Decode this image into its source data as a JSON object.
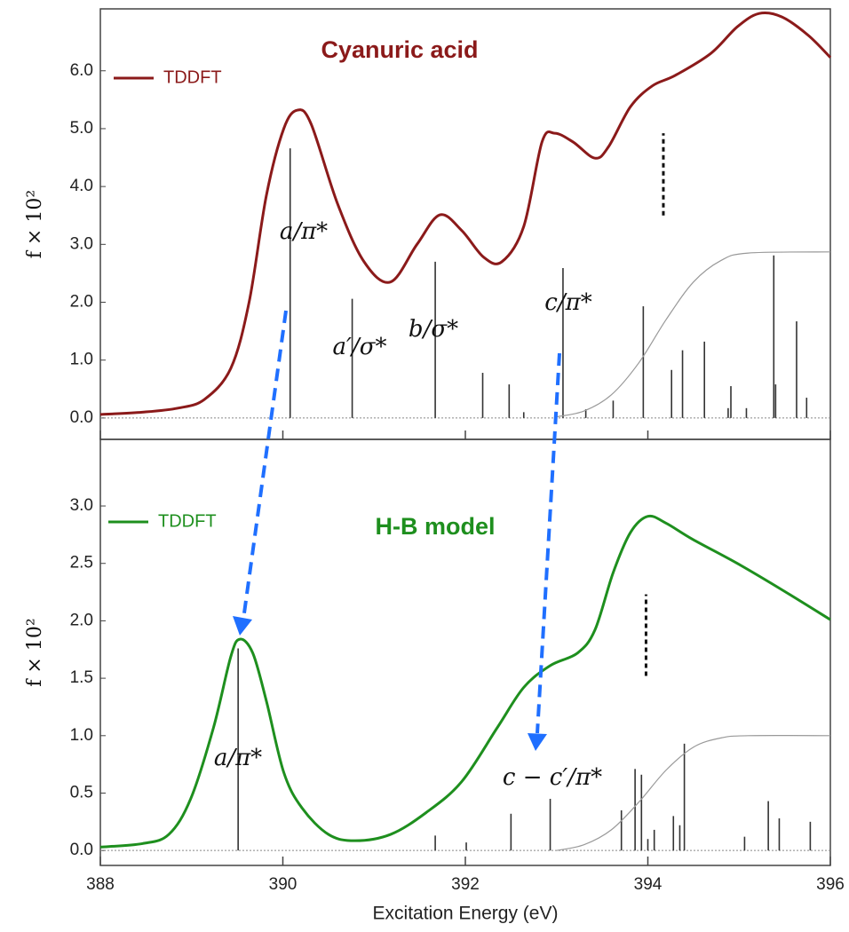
{
  "chart_data": [
    {
      "type": "line",
      "title": "Cyanuric acid",
      "title_color": "#8b1a1a",
      "ylabel": "f × 10²",
      "legend": "upper left",
      "ylim": [
        -0.37,
        7.07
      ],
      "yticks": [
        {
          "value": 0,
          "label": "0.0"
        },
        {
          "value": 1,
          "label": "1.0"
        },
        {
          "value": 2,
          "label": "2.0"
        },
        {
          "value": 3,
          "label": "3.0"
        },
        {
          "value": 4,
          "label": "4.0"
        },
        {
          "value": 5,
          "label": "5.0"
        },
        {
          "value": 6,
          "label": "6.0"
        }
      ],
      "xlim": [
        388,
        396
      ],
      "xticks": [
        388,
        390,
        392,
        394,
        396
      ],
      "series": [
        {
          "name": "TDDFT",
          "kind": "curve",
          "color": "#8b1a1a",
          "x": [
            388.0,
            388.46,
            388.85,
            389.14,
            389.43,
            389.63,
            389.82,
            390.01,
            390.16,
            390.31,
            390.6,
            390.89,
            391.18,
            391.47,
            391.72,
            391.96,
            392.2,
            392.4,
            392.64,
            392.84,
            392.98,
            393.18,
            393.42,
            393.57,
            393.81,
            394.05,
            394.3,
            394.69,
            394.98,
            395.22,
            395.47,
            395.76,
            396.0
          ],
          "values": [
            0.06,
            0.1,
            0.17,
            0.32,
            0.86,
            2.0,
            3.85,
            5.0,
            5.32,
            5.08,
            3.7,
            2.7,
            2.35,
            3.0,
            3.51,
            3.24,
            2.78,
            2.7,
            3.31,
            4.77,
            4.92,
            4.77,
            4.49,
            4.69,
            5.38,
            5.74,
            5.92,
            6.3,
            6.76,
            6.99,
            6.93,
            6.61,
            6.23
          ]
        },
        {
          "kind": "stick",
          "color": "#333333",
          "x": [
            390.08,
            390.76,
            391.67,
            392.19,
            392.48,
            392.64,
            393.07,
            393.32,
            393.62,
            393.95,
            394.26,
            394.38,
            394.62,
            394.88,
            394.91,
            395.08,
            395.38,
            395.4,
            395.63,
            395.74
          ],
          "values": [
            4.66,
            2.06,
            2.7,
            0.78,
            0.58,
            0.1,
            2.59,
            0.15,
            0.3,
            1.93,
            0.83,
            1.17,
            1.32,
            0.17,
            0.55,
            0.17,
            2.81,
            0.58,
            1.67,
            0.35
          ]
        },
        {
          "kind": "edge",
          "color": "#999999",
          "x": [
            393.0,
            393.3,
            393.6,
            393.9,
            394.2,
            394.5,
            394.8,
            395.1,
            396.0
          ],
          "values": [
            0.02,
            0.12,
            0.4,
            0.95,
            1.7,
            2.35,
            2.72,
            2.85,
            2.87
          ]
        }
      ],
      "ip_marker": {
        "x": 394.17,
        "y": [
          3.5,
          4.92
        ]
      },
      "annotations": [
        "a/π*",
        "a′/σ*",
        "b/σ*",
        "c/π*"
      ]
    },
    {
      "type": "line",
      "title": "H-B  model",
      "title_color": "#1e8f1e",
      "ylabel": "f × 10²",
      "xlabel": "Excitation Energy (eV)",
      "legend": "upper left",
      "ylim": [
        -0.13,
        3.58
      ],
      "yticks": [
        {
          "value": 0,
          "label": "0.0"
        },
        {
          "value": 0.5,
          "label": "0.5"
        },
        {
          "value": 1,
          "label": "1.0"
        },
        {
          "value": 1.5,
          "label": "1.5"
        },
        {
          "value": 2,
          "label": "2.0"
        },
        {
          "value": 2.5,
          "label": "2.5"
        },
        {
          "value": 3,
          "label": "3.0"
        }
      ],
      "xlim": [
        388,
        396
      ],
      "xticks": [
        388,
        390,
        392,
        394,
        396
      ],
      "series": [
        {
          "name": "TDDFT",
          "kind": "curve",
          "color": "#1e8f1e",
          "x": [
            388.0,
            388.46,
            388.75,
            388.99,
            389.24,
            389.43,
            389.53,
            389.67,
            389.82,
            390.01,
            390.21,
            390.5,
            390.79,
            391.18,
            391.57,
            391.96,
            392.35,
            392.64,
            392.93,
            393.23,
            393.42,
            393.62,
            393.81,
            394.0,
            394.2,
            394.49,
            394.98,
            395.47,
            396.0
          ],
          "values": [
            0.03,
            0.06,
            0.14,
            0.45,
            1.07,
            1.69,
            1.84,
            1.72,
            1.3,
            0.68,
            0.37,
            0.14,
            0.085,
            0.14,
            0.33,
            0.6,
            1.07,
            1.42,
            1.61,
            1.72,
            1.92,
            2.42,
            2.77,
            2.91,
            2.85,
            2.71,
            2.5,
            2.27,
            2.01
          ]
        },
        {
          "kind": "stick",
          "color": "#333333",
          "x": [
            389.51,
            391.67,
            392.01,
            392.5,
            392.93,
            393.71,
            393.86,
            393.93,
            394.0,
            394.07,
            394.28,
            394.35,
            394.4,
            395.06,
            395.32,
            395.44,
            395.78
          ],
          "values": [
            1.76,
            0.13,
            0.07,
            0.32,
            0.45,
            0.35,
            0.71,
            0.66,
            0.1,
            0.18,
            0.3,
            0.22,
            0.93,
            0.12,
            0.43,
            0.28,
            0.25
          ]
        },
        {
          "kind": "edge",
          "color": "#999999",
          "x": [
            393.0,
            393.3,
            393.6,
            393.9,
            394.2,
            394.5,
            394.8,
            395.1,
            396.0
          ],
          "values": [
            0.0,
            0.05,
            0.18,
            0.42,
            0.7,
            0.9,
            0.98,
            1.0,
            1.0
          ]
        }
      ],
      "ip_marker": {
        "x": 393.98,
        "y": [
          1.52,
          2.23
        ]
      },
      "annotations": [
        "a/π*",
        "c − c′/π*"
      ]
    }
  ]
}
